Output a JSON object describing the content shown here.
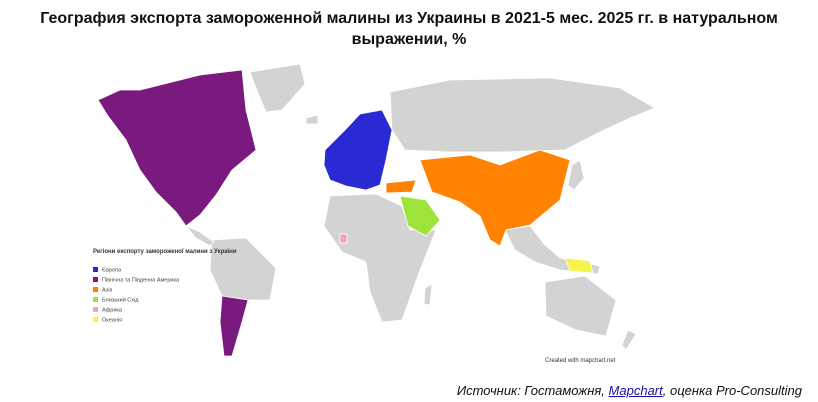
{
  "header": {
    "title": "География экспорта замороженной малины из Украины в 2021-5 мес. 2025 гг. в натуральном выражении, %"
  },
  "legend": {
    "title": "Регіони експорту замороженої малини з України",
    "items": [
      {
        "label": "Європа",
        "color": "#2a2ad4"
      },
      {
        "label": "Північна та Південна Америка",
        "color": "#7a1a7e"
      },
      {
        "label": "Азія",
        "color": "#ff8200"
      },
      {
        "label": "Близький Схід",
        "color": "#9ee33a"
      },
      {
        "label": "Африка",
        "color": "#f2a2c4"
      },
      {
        "label": "Океанія",
        "color": "#f4f44a"
      }
    ]
  },
  "credit": "Created with mapchart.net",
  "source": {
    "prefix": "Источник: Гостаможня,",
    "link": "Mapchart",
    "suffix": ", оценка Pro-Consulting"
  }
}
